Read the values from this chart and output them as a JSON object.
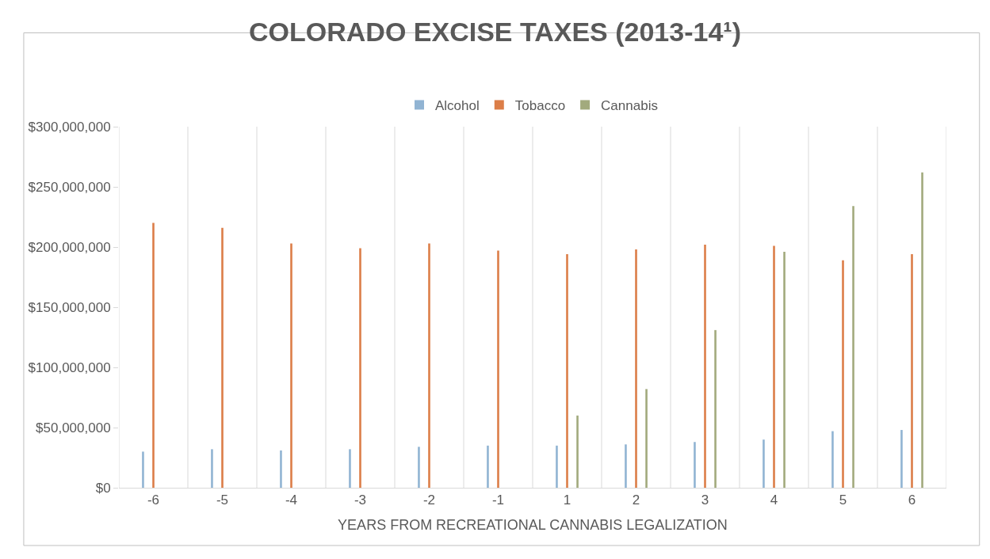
{
  "chart_data": {
    "type": "bar",
    "title": "COLORADO EXCISE TAXES (2013-14¹)",
    "xlabel": "YEARS FROM RECREATIONAL CANNABIS LEGALIZATION",
    "categories": [
      "-6",
      "-5",
      "-4",
      "-3",
      "-2",
      "-1",
      "1",
      "2",
      "3",
      "4",
      "5",
      "6"
    ],
    "series": [
      {
        "name": "Alcohol",
        "color": "#91b4d3",
        "values": [
          30000000,
          32000000,
          31000000,
          32000000,
          34000000,
          35000000,
          35000000,
          36000000,
          38000000,
          40000000,
          47000000,
          48000000
        ]
      },
      {
        "name": "Tobacco",
        "color": "#dc7e48",
        "values": [
          220000000,
          216000000,
          203000000,
          199000000,
          203000000,
          197000000,
          194000000,
          198000000,
          202000000,
          201000000,
          189000000,
          194000000
        ]
      },
      {
        "name": "Cannabis",
        "color": "#a2aa7d",
        "values": [
          null,
          null,
          null,
          null,
          null,
          null,
          60000000,
          82000000,
          131000000,
          196000000,
          234000000,
          262000000
        ]
      }
    ],
    "ylim": [
      0,
      300000000
    ],
    "yticks": [
      {
        "value": 0,
        "label": "$0"
      },
      {
        "value": 50000000,
        "label": "$50,000,000"
      },
      {
        "value": 100000000,
        "label": "$100,000,000"
      },
      {
        "value": 150000000,
        "label": "$150,000,000"
      },
      {
        "value": 200000000,
        "label": "$200,000,000"
      },
      {
        "value": 250000000,
        "label": "$250,000,000"
      },
      {
        "value": 300000000,
        "label": "$300,000,000"
      }
    ],
    "grid": "x",
    "legend": "top"
  }
}
